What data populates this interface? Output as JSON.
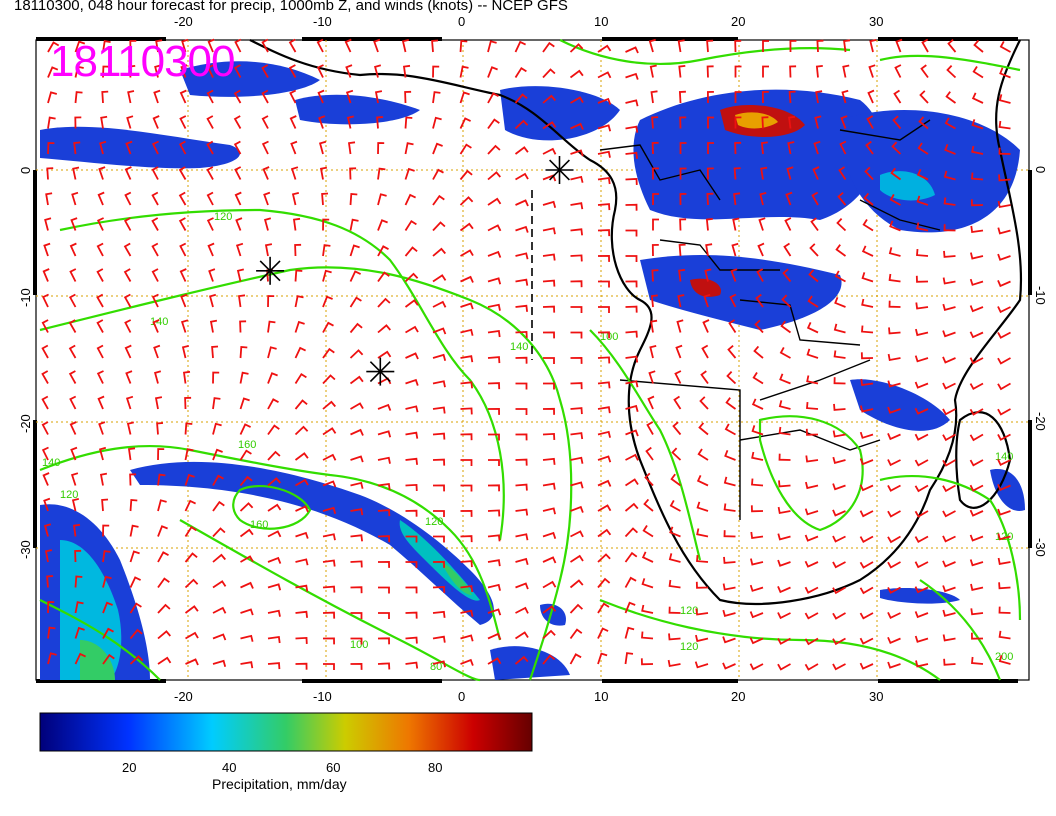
{
  "title": "18110300, 048 hour forecast for precip, 1000mb Z, and winds (knots) -- NCEP GFS",
  "stamp": "18110300",
  "axes": {
    "lon_labels": [
      "-20",
      "-10",
      "0",
      "10",
      "20",
      "30"
    ],
    "lat_labels": [
      "0",
      "-10",
      "-20",
      "-30"
    ]
  },
  "contour_labels": [
    "120",
    "140",
    "160",
    "160",
    "140",
    "120",
    "120",
    "100",
    "80",
    "140",
    "120",
    "100",
    "120",
    "140",
    "120",
    "200"
  ],
  "colorbar": {
    "ticks": [
      "20",
      "40",
      "60",
      "80"
    ],
    "title": "Precipitation, mm/day",
    "range": [
      0,
      100
    ]
  },
  "markers": [
    {
      "type": "asterisk",
      "lon": -14,
      "lat": -8
    },
    {
      "type": "asterisk",
      "lon": -6,
      "lat": -16
    },
    {
      "type": "asterisk",
      "lon": 7,
      "lat": 0
    }
  ],
  "colors": {
    "contour": "#33dd00",
    "barbs": "#ee1111",
    "coastline": "#000000",
    "grid": "#d8a000",
    "stamp": "#ff00ff"
  }
}
